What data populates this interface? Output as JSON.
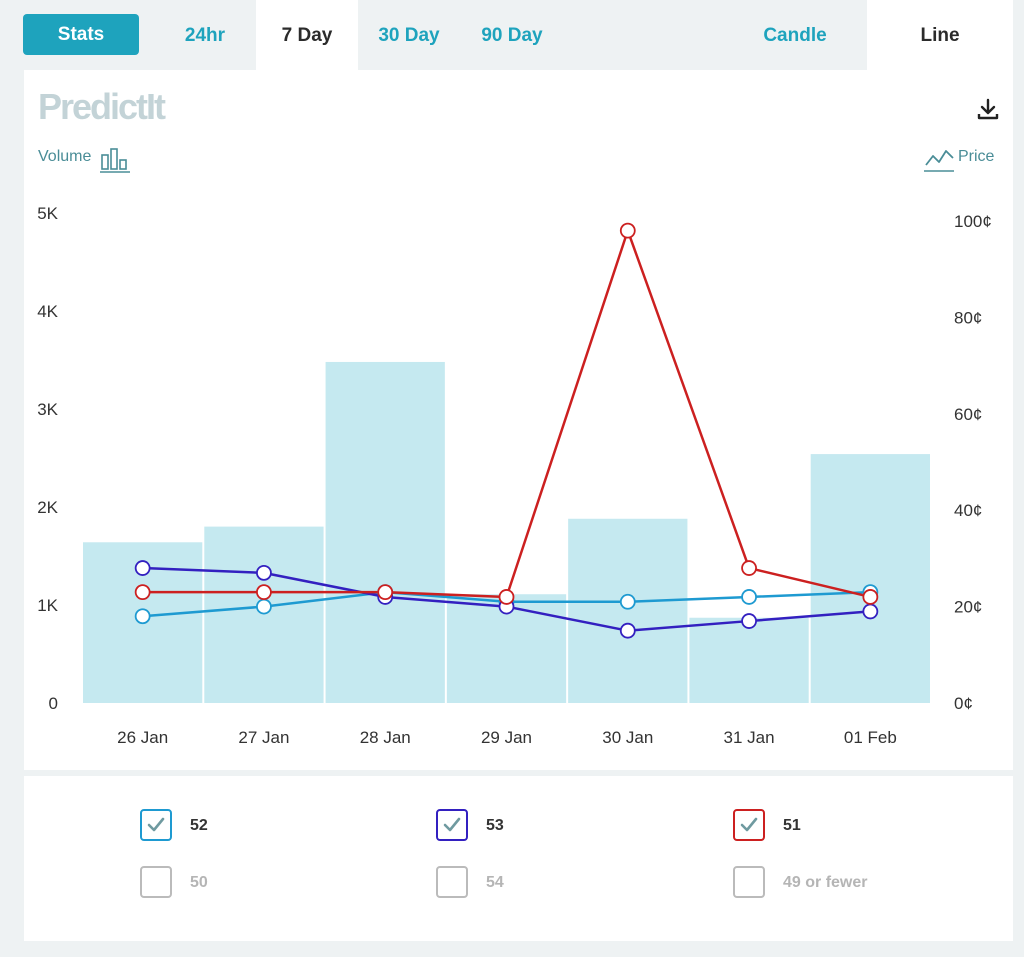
{
  "tabs": {
    "stats_label": "Stats",
    "range_tabs": [
      {
        "label": "24hr",
        "active": false
      },
      {
        "label": "7 Day",
        "active": true
      },
      {
        "label": "30 Day",
        "active": false
      },
      {
        "label": "90 Day",
        "active": false
      }
    ],
    "chart_type_tabs": [
      {
        "label": "Candle",
        "active": false
      },
      {
        "label": "Line",
        "active": true
      }
    ]
  },
  "logo_text": "PredictIt",
  "volume_label": "Volume",
  "price_label": "Price",
  "icons": {
    "download": "download-icon",
    "volume": "bar-chart-icon",
    "price": "line-chart-icon",
    "check": "check-icon"
  },
  "chart_data": {
    "type": "bar+line",
    "categories": [
      "26 Jan",
      "27 Jan",
      "28 Jan",
      "29 Jan",
      "30 Jan",
      "31 Jan",
      "01 Feb"
    ],
    "volume": {
      "values": [
        1640,
        1800,
        3480,
        1110,
        1880,
        870,
        2540
      ],
      "axis_ticks": [
        "0",
        "1K",
        "2K",
        "3K",
        "4K",
        "5K"
      ],
      "ylim": [
        0,
        5000
      ],
      "color": "#c5e9f0"
    },
    "price_axis": {
      "ticks": [
        "0¢",
        "20¢",
        "40¢",
        "60¢",
        "80¢",
        "100¢"
      ],
      "ylim": [
        0,
        100
      ]
    },
    "series": [
      {
        "name": "52",
        "color": "#1e9ad1",
        "values": [
          18,
          20,
          23,
          21,
          21,
          22,
          23
        ]
      },
      {
        "name": "53",
        "color": "#3320c0",
        "values": [
          28,
          27,
          22,
          20,
          15,
          17,
          19
        ]
      },
      {
        "name": "51",
        "color": "#cc2020",
        "values": [
          23,
          23,
          23,
          22,
          98,
          28,
          22
        ]
      }
    ],
    "grid": false
  },
  "legend": [
    {
      "label": "52",
      "checked": true,
      "color": "#1e9ad1"
    },
    {
      "label": "53",
      "checked": true,
      "color": "#3320c0"
    },
    {
      "label": "51",
      "checked": true,
      "color": "#cc2020"
    },
    {
      "label": "50",
      "checked": false,
      "color": "#bbbbbb"
    },
    {
      "label": "54",
      "checked": false,
      "color": "#bbbbbb"
    },
    {
      "label": "49 or fewer",
      "checked": false,
      "color": "#bbbbbb"
    }
  ]
}
